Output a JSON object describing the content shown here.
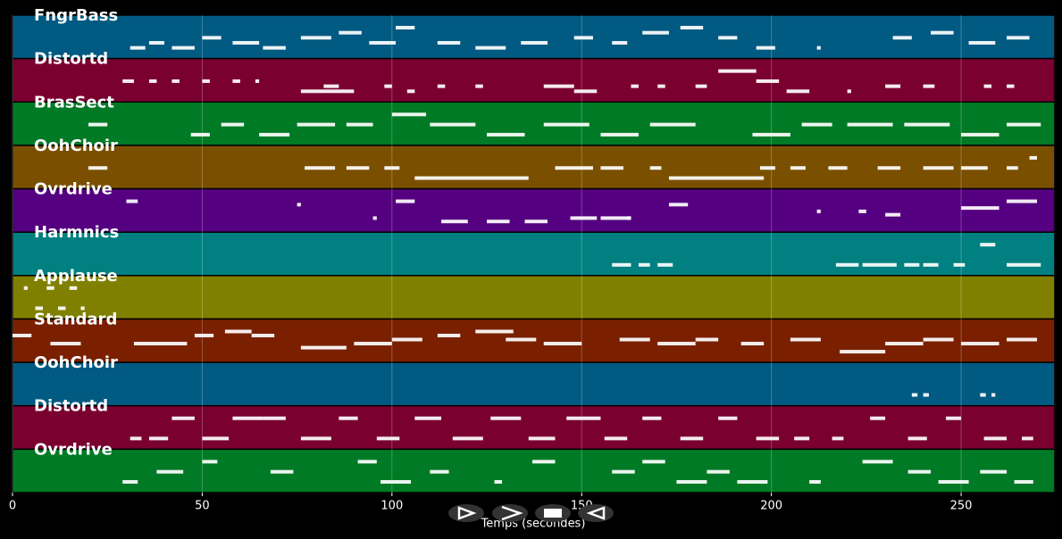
{
  "chart_data": {
    "type": "pianoroll",
    "xlabel": "Temps (secondes)",
    "xlim": [
      0,
      274.7
    ],
    "xticks": [
      0,
      50,
      100,
      150,
      200,
      250
    ],
    "grid": true,
    "tracks": [
      {
        "name": "FngrBass",
        "color": "#005a82",
        "notes": {
          "start": [
            31,
            36,
            42,
            50,
            58,
            66,
            76,
            86,
            94,
            101,
            112,
            122,
            134,
            148,
            158,
            166,
            176,
            186,
            196,
            212,
            232,
            242,
            252,
            262
          ],
          "duration": [
            4,
            4,
            6,
            5,
            7,
            6,
            8,
            6,
            7,
            5,
            6,
            8,
            7,
            5,
            4,
            7,
            6,
            5,
            5,
            1,
            5,
            6,
            7,
            6
          ],
          "pitch": [
            40,
            41,
            40,
            42,
            41,
            40,
            42,
            43,
            41,
            44,
            41,
            40,
            41,
            42,
            41,
            43,
            44,
            42,
            40,
            40,
            42,
            43,
            41,
            42
          ]
        }
      },
      {
        "name": "Distortd",
        "color": "#7a0030",
        "notes": {
          "start": [
            29,
            36,
            42,
            50,
            58,
            64,
            76,
            82,
            98,
            104,
            112,
            122,
            140,
            148,
            163,
            170,
            180,
            186,
            196,
            204,
            220,
            230,
            240,
            256,
            262
          ],
          "duration": [
            3,
            2,
            2,
            2,
            2,
            1,
            14,
            4,
            2,
            2,
            2,
            2,
            8,
            6,
            2,
            2,
            3,
            10,
            6,
            6,
            1,
            4,
            3,
            2,
            2
          ],
          "pitch": [
            52,
            52,
            52,
            52,
            52,
            52,
            50,
            51,
            51,
            50,
            51,
            51,
            51,
            50,
            51,
            51,
            51,
            54,
            52,
            50,
            50,
            51,
            51,
            51,
            51
          ]
        }
      },
      {
        "name": "BrasSect",
        "color": "#007a25",
        "notes": {
          "start": [
            20,
            47,
            55,
            65,
            75,
            88,
            100,
            110,
            125,
            140,
            155,
            168,
            195,
            208,
            220,
            235,
            250,
            262
          ],
          "duration": [
            5,
            5,
            6,
            8,
            10,
            7,
            9,
            12,
            10,
            12,
            10,
            12,
            10,
            8,
            12,
            12,
            10,
            9
          ],
          "pitch": [
            60,
            59,
            60,
            59,
            60,
            60,
            61,
            60,
            59,
            60,
            59,
            60,
            59,
            60,
            60,
            60,
            59,
            60
          ]
        }
      },
      {
        "name": "OohChoir",
        "color": "#7a5000",
        "notes": {
          "start": [
            20,
            77,
            88,
            98,
            106,
            143,
            155,
            168,
            173,
            197,
            205,
            215,
            228,
            240,
            250,
            262,
            268
          ],
          "duration": [
            5,
            8,
            6,
            4,
            30,
            10,
            6,
            3,
            25,
            4,
            4,
            5,
            6,
            8,
            7,
            3,
            2
          ],
          "pitch": [
            64,
            64,
            64,
            64,
            63,
            64,
            64,
            64,
            63,
            64,
            64,
            64,
            64,
            64,
            64,
            64,
            65
          ]
        }
      },
      {
        "name": "Ovrdrive",
        "color": "#550080",
        "notes": {
          "start": [
            30,
            75,
            95,
            101,
            113,
            125,
            135,
            147,
            155,
            162,
            173,
            212,
            223,
            230,
            250,
            262
          ],
          "duration": [
            3,
            1,
            1,
            5,
            7,
            6,
            6,
            7,
            8,
            1,
            5,
            1,
            2,
            4,
            10,
            8
          ],
          "pitch": [
            70,
            69,
            65,
            70,
            64,
            64,
            64,
            65,
            65,
            65,
            69,
            67,
            67,
            66,
            68,
            70
          ]
        }
      },
      {
        "name": "Harmnics",
        "color": "#008080",
        "notes": {
          "start": [
            158,
            165,
            170,
            217,
            224,
            235,
            240,
            248,
            255,
            262
          ],
          "duration": [
            5,
            3,
            4,
            6,
            9,
            4,
            4,
            3,
            4,
            9
          ],
          "pitch": [
            72,
            72,
            72,
            72,
            72,
            72,
            72,
            72,
            73,
            72
          ]
        }
      },
      {
        "name": "Applause",
        "color": "#808000",
        "notes": {
          "start": [
            3,
            6,
            9,
            12,
            15,
            18
          ],
          "duration": [
            1,
            2,
            2,
            2,
            2,
            1
          ],
          "pitch": [
            40,
            39,
            40,
            39,
            40,
            39
          ]
        }
      },
      {
        "name": "Standard",
        "color": "#7a2000",
        "notes": {
          "start": [
            0,
            10,
            32,
            48,
            56,
            63,
            76,
            90,
            100,
            112,
            122,
            130,
            140,
            160,
            170,
            180,
            192,
            205,
            218,
            230,
            240,
            250,
            262
          ],
          "duration": [
            5,
            8,
            14,
            5,
            7,
            6,
            12,
            10,
            8,
            6,
            10,
            8,
            10,
            8,
            10,
            6,
            6,
            8,
            12,
            10,
            8,
            10,
            8
          ],
          "pitch": [
            38,
            36,
            36,
            38,
            39,
            38,
            35,
            36,
            37,
            38,
            39,
            37,
            36,
            37,
            36,
            37,
            36,
            37,
            34,
            36,
            37,
            36,
            37
          ]
        }
      },
      {
        "name": "OohChoir",
        "color": "#005a82",
        "notes": {
          "start": [
            237,
            240,
            255,
            258
          ],
          "duration": [
            1.5,
            1.5,
            1.5,
            1
          ],
          "pitch": [
            64,
            64,
            64,
            64
          ]
        }
      },
      {
        "name": "Distortd",
        "color": "#7a0030",
        "notes": {
          "start": [
            31,
            36,
            42,
            50,
            58,
            66,
            76,
            86,
            96,
            106,
            116,
            126,
            136,
            146,
            156,
            166,
            176,
            186,
            196,
            206,
            216,
            226,
            236,
            246,
            256,
            266
          ],
          "duration": [
            3,
            5,
            6,
            7,
            8,
            6,
            8,
            5,
            6,
            7,
            8,
            8,
            7,
            9,
            6,
            5,
            6,
            5,
            6,
            4,
            3,
            4,
            5,
            4,
            6,
            3
          ],
          "pitch": [
            50,
            50,
            51,
            50,
            51,
            51,
            50,
            51,
            50,
            51,
            50,
            51,
            50,
            51,
            50,
            51,
            50,
            51,
            50,
            50,
            50,
            51,
            50,
            51,
            50,
            50
          ]
        }
      },
      {
        "name": "Ovrdrive",
        "color": "#007a25",
        "notes": {
          "start": [
            29,
            38,
            50,
            68,
            91,
            97,
            110,
            127,
            137,
            158,
            166,
            175,
            183,
            191,
            210,
            224,
            236,
            244,
            255,
            264
          ],
          "duration": [
            4,
            7,
            4,
            6,
            5,
            8,
            5,
            2,
            6,
            6,
            6,
            8,
            6,
            8,
            3,
            8,
            6,
            8,
            7,
            5
          ],
          "pitch": [
            55,
            56,
            57,
            56,
            57,
            55,
            56,
            55,
            57,
            56,
            57,
            55,
            56,
            55,
            55,
            57,
            56,
            55,
            56,
            55
          ]
        }
      }
    ]
  }
}
